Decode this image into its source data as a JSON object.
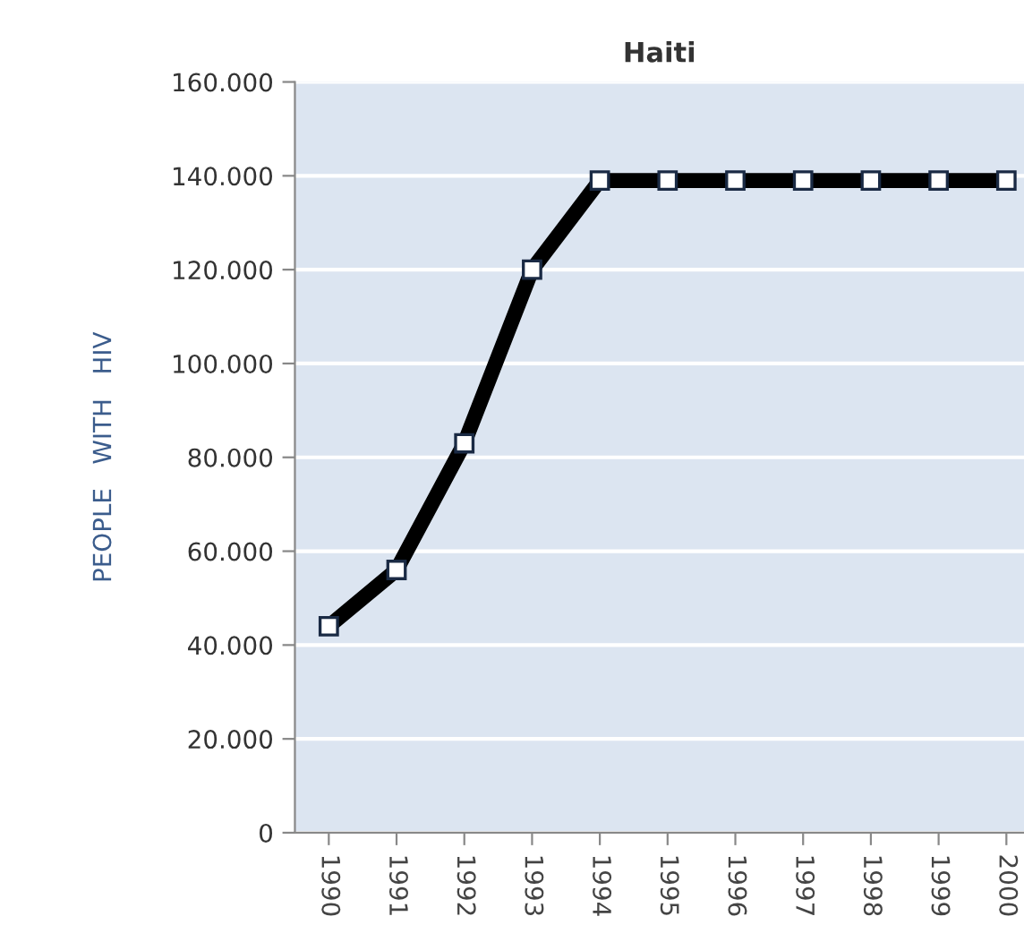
{
  "chart_data": {
    "type": "line",
    "title": "Haiti",
    "ylabel": "PEOPLE   WITH   HIV",
    "categories": [
      "1990",
      "1991",
      "1992",
      "1993",
      "1994",
      "1995",
      "1996",
      "1997",
      "1998",
      "1999",
      "2000"
    ],
    "series": [
      {
        "color": "#000000",
        "values": [
          44000,
          56000,
          83000,
          120000,
          139000,
          139000,
          139000,
          139000,
          139000,
          139000,
          139000
        ]
      }
    ],
    "ylim": [
      0,
      160000
    ],
    "yticks": [
      0,
      {
        "value": 20000,
        "label": "20.000"
      },
      {
        "value": 40000,
        "label": "40.000"
      },
      {
        "value": 60000,
        "label": "60.000"
      },
      {
        "value": 80000,
        "label": "80.000"
      },
      {
        "value": 100000,
        "label": "100.000"
      },
      {
        "value": 120000,
        "label": "120.000"
      },
      {
        "value": 140000,
        "label": "140.000"
      },
      {
        "value": 160000,
        "label": "160.000"
      }
    ],
    "grid": "y",
    "marker": "square",
    "line_style": "solid"
  }
}
